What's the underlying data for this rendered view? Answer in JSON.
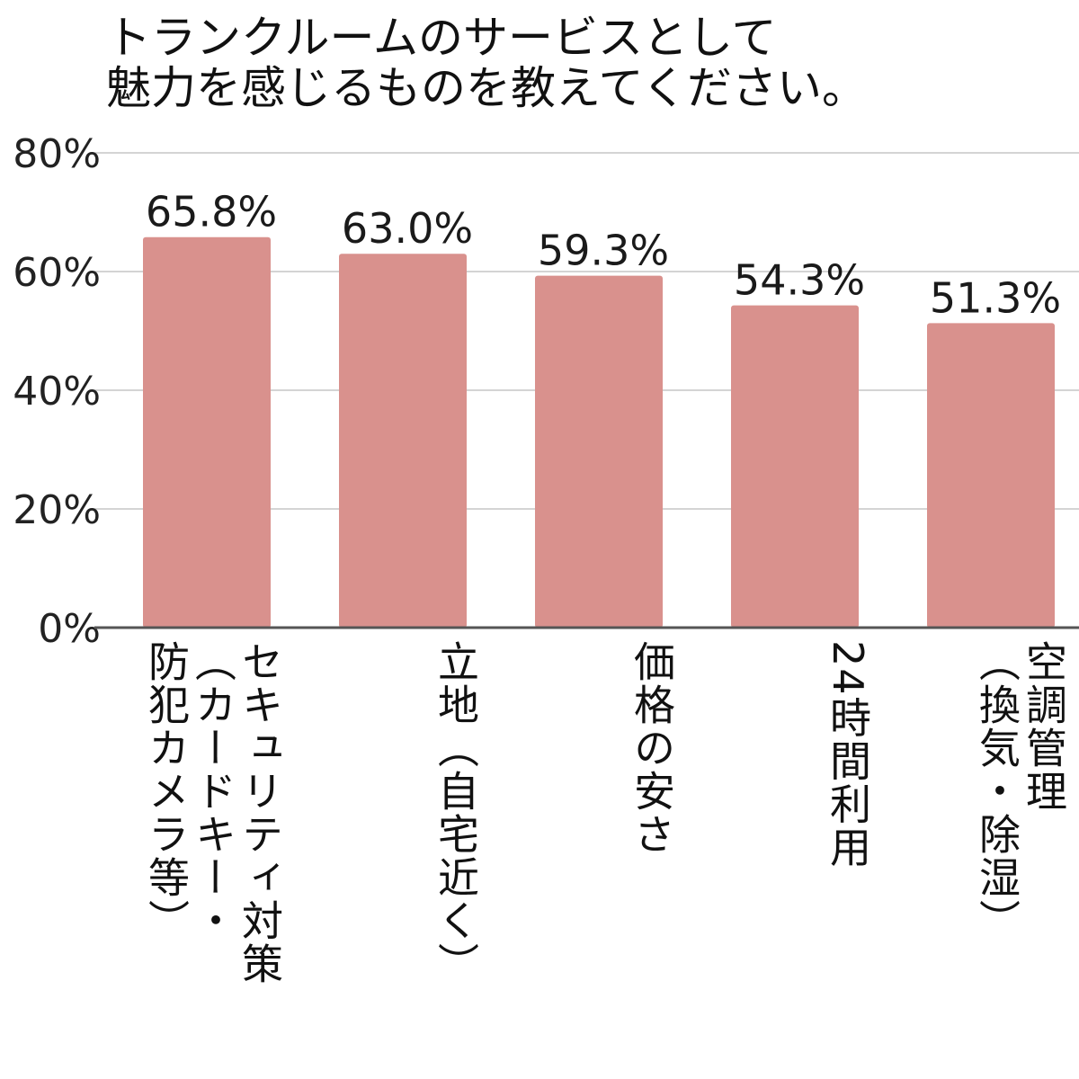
{
  "chart_data": {
    "type": "bar",
    "title": [
      "トランクルームのサービスとして",
      "魅力を感じるものを教えてください。"
    ],
    "categories": [
      [
        "セキュリティ対策",
        "（カードキー・",
        "防犯カメラ等）"
      ],
      [
        "立地（自宅近く）"
      ],
      [
        "価格の安さ"
      ],
      [
        "24時間利用"
      ],
      [
        "空調管理",
        "（換気・除湿）"
      ]
    ],
    "values": [
      65.8,
      63.0,
      59.3,
      54.3,
      51.3
    ],
    "value_labels": [
      "65.8%",
      "63.0%",
      "59.3%",
      "54.3%",
      "51.3%"
    ],
    "ylim": [
      0,
      80
    ],
    "yticks": [
      0,
      20,
      40,
      60,
      80
    ],
    "ytick_labels": [
      "0%",
      "20%",
      "40%",
      "60%",
      "80%"
    ],
    "grid": true,
    "bar_color": "#d9918d"
  }
}
